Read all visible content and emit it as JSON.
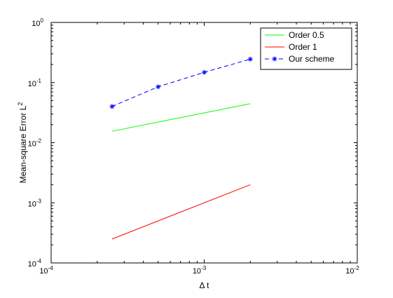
{
  "chart_data": {
    "type": "line",
    "title": "",
    "xlabel": "Δ t",
    "ylabel": "Mean-square Error L",
    "ylabel_superscript": "2",
    "xscale": "log",
    "yscale": "log",
    "xlim": [
      0.0001,
      0.01
    ],
    "ylim": [
      0.0001,
      1
    ],
    "grid": false,
    "legend_position": "top-right",
    "x_ticks": [
      {
        "value": 0.0001,
        "base": "10",
        "exp": "-4"
      },
      {
        "value": 0.001,
        "base": "10",
        "exp": "-3"
      },
      {
        "value": 0.01,
        "base": "10",
        "exp": "-2"
      }
    ],
    "y_ticks": [
      {
        "value": 0.0001,
        "base": "10",
        "exp": "-4"
      },
      {
        "value": 0.001,
        "base": "10",
        "exp": "-3"
      },
      {
        "value": 0.01,
        "base": "10",
        "exp": "-2"
      },
      {
        "value": 0.1,
        "base": "10",
        "exp": "-1"
      },
      {
        "value": 1,
        "base": "10",
        "exp": "0"
      }
    ],
    "series": [
      {
        "name": "Order 0.5",
        "color": "#00ff00",
        "dash": "solid",
        "marker": "none",
        "x": [
          0.00025,
          0.002
        ],
        "y": [
          0.0155,
          0.0445
        ]
      },
      {
        "name": "Order 1",
        "color": "#ff0000",
        "dash": "solid",
        "marker": "none",
        "x": [
          0.00025,
          0.002
        ],
        "y": [
          0.00025,
          0.002
        ]
      },
      {
        "name": "Our scheme",
        "color": "#0000ff",
        "dash": "dashed",
        "marker": "star",
        "x": [
          0.00025,
          0.0005,
          0.001,
          0.002
        ],
        "y": [
          0.04,
          0.085,
          0.148,
          0.245
        ]
      }
    ]
  }
}
